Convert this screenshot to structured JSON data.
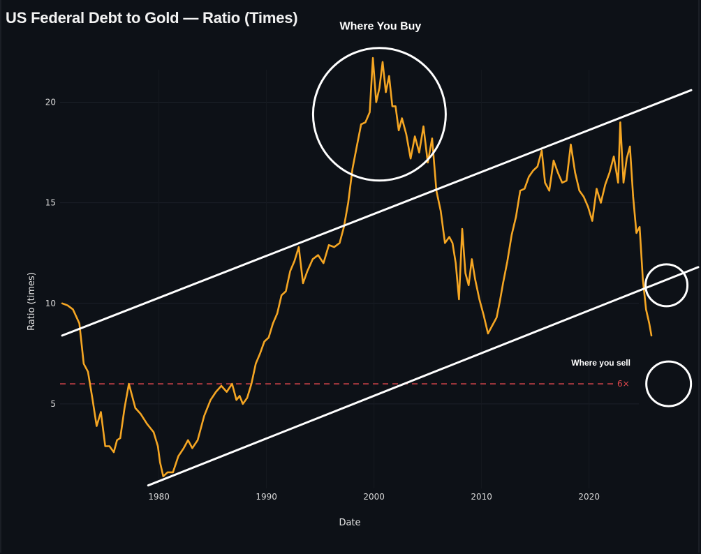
{
  "page": {
    "title": "US Federal Debt to Gold — Ratio (Times)"
  },
  "colors": {
    "background": "#0d1117",
    "series": "#f5a623",
    "channel": "#ffffff",
    "reference": "#e0474c",
    "annotation": "#ffffff"
  },
  "chart_data": {
    "type": "line",
    "title": "US Federal Debt to Gold — Ratio (Times)",
    "xlabel": "Date",
    "ylabel": "Ratio (times)",
    "xlim": [
      1970.8,
      2029.5
    ],
    "ylim": [
      0.8,
      23
    ],
    "grid": true,
    "x_ticks": [
      1980,
      1990,
      2000,
      2010,
      2020
    ],
    "x_tick_labels": [
      "1980",
      "1990",
      "2000",
      "2010",
      "2020"
    ],
    "y_ticks": [
      5,
      10,
      15,
      20
    ],
    "y_tick_labels": [
      "5",
      "10",
      "15",
      "20"
    ],
    "series": [
      {
        "x": [
          1971.0,
          1971.5,
          1972.0,
          1972.6,
          1973.0,
          1973.4,
          1973.8,
          1974.2,
          1974.6,
          1975.0,
          1975.4,
          1975.8,
          1976.1,
          1976.4,
          1976.8,
          1977.2,
          1977.8,
          1978.3,
          1978.9,
          1979.5,
          1979.9,
          1980.1,
          1980.4,
          1980.8,
          1981.3,
          1981.8,
          1982.3,
          1982.7,
          1983.1,
          1983.6,
          1984.2,
          1984.8,
          1985.3,
          1985.8,
          1986.3,
          1986.8,
          1987.2,
          1987.5,
          1987.8,
          1988.2,
          1988.6,
          1989.0,
          1989.4,
          1989.8,
          1990.2,
          1990.6,
          1991.0,
          1991.4,
          1991.8,
          1992.2,
          1992.6,
          1993.0,
          1993.4,
          1993.8,
          1994.3,
          1994.8,
          1995.3,
          1995.8,
          1996.3,
          1996.8,
          1997.2,
          1997.6,
          1998.0,
          1998.4,
          1998.8,
          1999.2,
          1999.6,
          1999.9,
          2000.2,
          2000.5,
          2000.8,
          2001.1,
          2001.4,
          2001.7,
          2002.0,
          2002.3,
          2002.6,
          2003.0,
          2003.4,
          2003.8,
          2004.2,
          2004.6,
          2005.0,
          2005.4,
          2005.8,
          2006.2,
          2006.6,
          2007.0,
          2007.3,
          2007.6,
          2007.9,
          2008.2,
          2008.5,
          2008.8,
          2009.1,
          2009.4,
          2009.8,
          2010.2,
          2010.6,
          2011.0,
          2011.4,
          2011.7,
          2012.0,
          2012.4,
          2012.8,
          2013.2,
          2013.6,
          2014.0,
          2014.4,
          2014.8,
          2015.2,
          2015.6,
          2015.9,
          2016.3,
          2016.7,
          2017.1,
          2017.5,
          2017.9,
          2018.3,
          2018.7,
          2019.1,
          2019.5,
          2019.9,
          2020.3,
          2020.7,
          2021.1,
          2021.5,
          2021.9,
          2022.3,
          2022.7,
          2022.9,
          2023.2,
          2023.5,
          2023.8,
          2024.1,
          2024.4,
          2024.7,
          2025.0,
          2025.3,
          2025.6,
          2025.8
        ],
        "y": [
          10.0,
          9.9,
          9.7,
          9.0,
          7.0,
          6.6,
          5.3,
          3.9,
          4.6,
          2.9,
          2.9,
          2.6,
          3.2,
          3.3,
          4.8,
          6.0,
          4.8,
          4.5,
          4.0,
          3.6,
          2.9,
          2.1,
          1.4,
          1.6,
          1.6,
          2.4,
          2.8,
          3.2,
          2.8,
          3.2,
          4.4,
          5.2,
          5.6,
          5.9,
          5.6,
          6.0,
          5.2,
          5.4,
          5.0,
          5.3,
          6.0,
          7.0,
          7.5,
          8.1,
          8.3,
          9.0,
          9.5,
          10.4,
          10.6,
          11.6,
          12.1,
          12.8,
          11.0,
          11.6,
          12.2,
          12.4,
          12.0,
          12.9,
          12.8,
          13.0,
          13.8,
          15.0,
          16.7,
          17.8,
          18.9,
          19.0,
          19.5,
          22.2,
          20.0,
          20.7,
          22.0,
          20.5,
          21.3,
          19.8,
          19.8,
          18.6,
          19.2,
          18.4,
          17.2,
          18.3,
          17.5,
          18.8,
          17.0,
          18.2,
          15.6,
          14.6,
          13.0,
          13.3,
          13.0,
          12.0,
          10.2,
          13.7,
          11.5,
          10.9,
          12.2,
          11.2,
          10.2,
          9.4,
          8.5,
          8.9,
          9.3,
          10.1,
          11.0,
          12.1,
          13.4,
          14.3,
          15.6,
          15.7,
          16.3,
          16.6,
          16.8,
          17.6,
          16.0,
          15.6,
          17.1,
          16.5,
          16.0,
          16.1,
          17.9,
          16.5,
          15.6,
          15.3,
          14.8,
          14.1,
          15.7,
          15.0,
          15.9,
          16.5,
          17.3,
          16.0,
          19.0,
          16.0,
          17.2,
          17.8,
          15.3,
          13.5,
          13.8,
          11.2,
          9.7,
          9.0,
          8.4
        ]
      }
    ],
    "channel_lines": [
      {
        "x": [
          1971.0,
          2029.5
        ],
        "y": [
          8.4,
          20.6
        ]
      },
      {
        "x": [
          1979.0,
          2033.0
        ],
        "y": [
          0.95,
          11.8
        ]
      }
    ],
    "reference_line": {
      "y": 6,
      "label": "6×"
    },
    "annotations": [
      {
        "text": "Where You Buy",
        "x": 2000.6,
        "y": 23.6
      },
      {
        "text": "Where you sell",
        "x": 2021.1,
        "y": 6.9
      }
    ],
    "circles": [
      {
        "x": 2000.5,
        "y": 19.4
      },
      {
        "x": 2027.2,
        "y": 10.9
      },
      {
        "x": 2027.4,
        "y": 6.0
      }
    ]
  }
}
